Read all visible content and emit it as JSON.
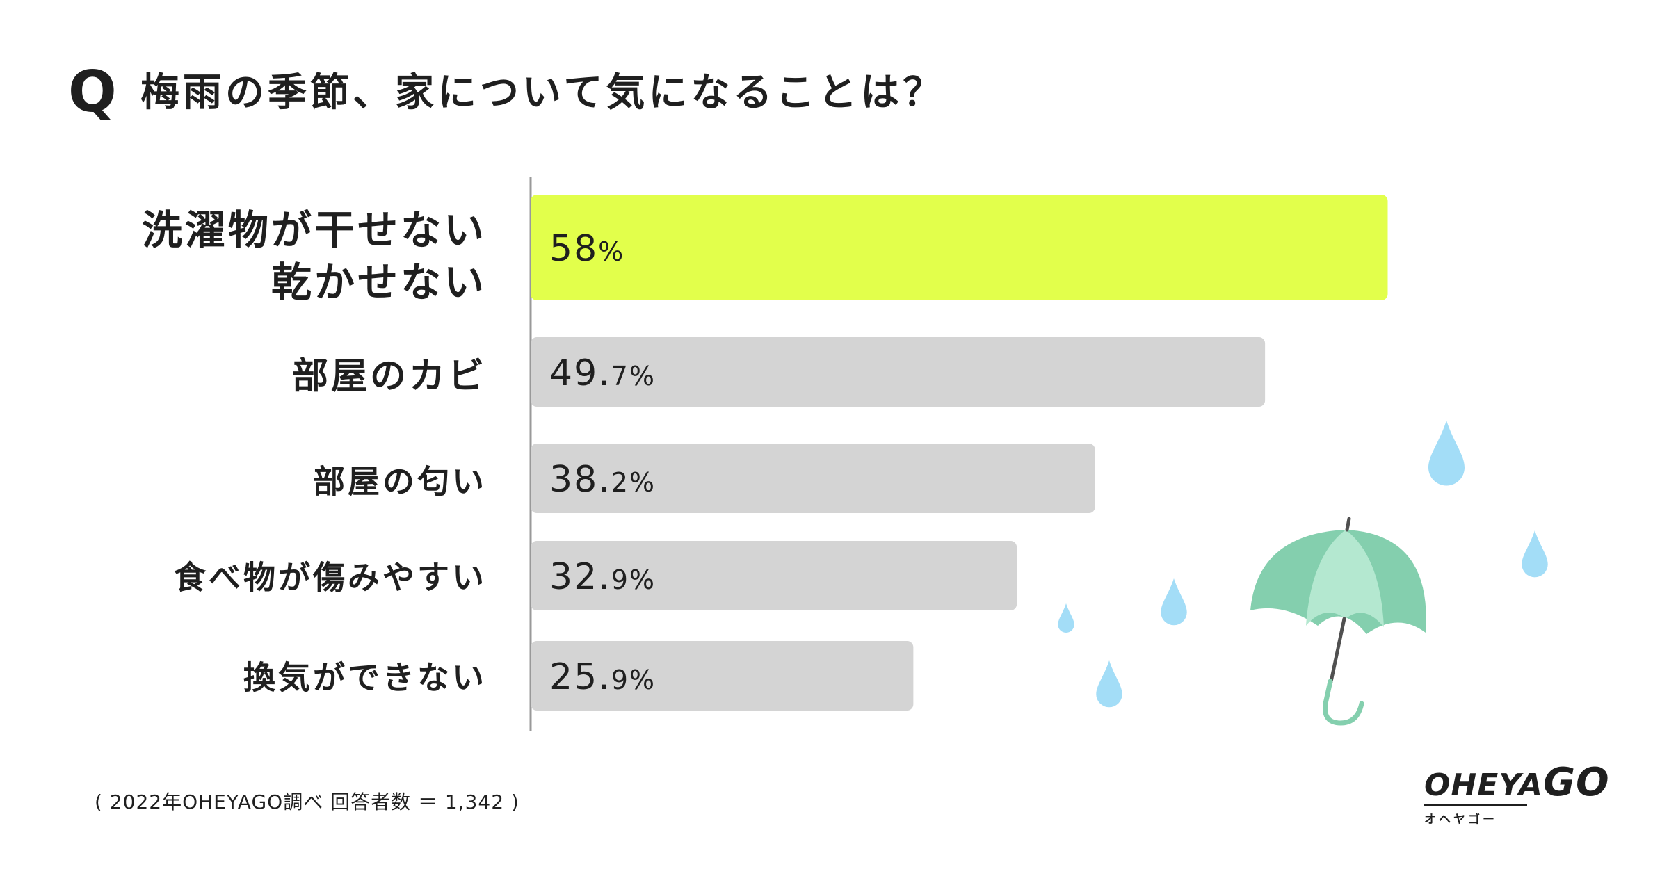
{
  "question": {
    "mark": "Q",
    "text": "梅雨の季節、家について気になることは？"
  },
  "chart_data": {
    "type": "bar",
    "orientation": "horizontal",
    "categories": [
      [
        "洗濯物が干せない",
        "乾かせない"
      ],
      [
        "部屋のカビ"
      ],
      [
        "部屋の匂い"
      ],
      [
        "食べ物が傷みやすい"
      ],
      [
        "換気ができない"
      ]
    ],
    "values": [
      58,
      49.7,
      38.2,
      32.9,
      25.9
    ],
    "value_labels": [
      {
        "num": "58",
        "unit": "%"
      },
      {
        "num": "49.",
        "unit": "7%"
      },
      {
        "num": "38.",
        "unit": "2%"
      },
      {
        "num": "32.",
        "unit": "9%"
      },
      {
        "num": "25.",
        "unit": "9%"
      }
    ],
    "highlight_index": 0,
    "xlim": [
      0,
      100
    ],
    "grid": false,
    "colors": {
      "highlight": "#E2FF4B",
      "bar": "#D4D4D4",
      "axis": "#999999",
      "text": "#1F1F1F"
    }
  },
  "footer": {
    "source": "( 2022年OHEYAGO調べ 回答者数 ＝ 1,342 )"
  },
  "logo": {
    "main": "OHEYA",
    "go": "GO",
    "sub": "オヘヤゴー"
  },
  "illustration": {
    "umbrella_colors": [
      "#84CFAE",
      "#B4E8D0"
    ],
    "handle_color": "#505050",
    "drop_color": "#A3DDF7"
  }
}
